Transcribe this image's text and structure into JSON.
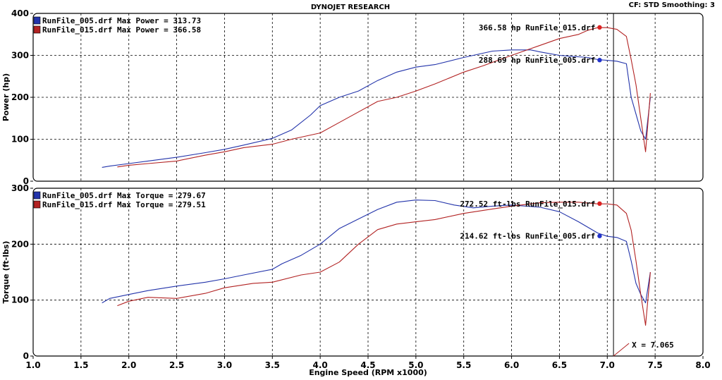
{
  "header": {
    "title": "DYNOJET RESEARCH",
    "settings": "CF: STD  Smoothing: 3"
  },
  "colors": {
    "run_005": "#2233aa",
    "run_015": "#b22222",
    "grid": "#000000",
    "panel_border": "#000000"
  },
  "cursor": {
    "x": 7.065,
    "label": "X = 7.065"
  },
  "chart_data": [
    {
      "type": "line",
      "ylabel": "Power (hp)",
      "xlabel": "",
      "xlim": [
        1.0,
        8.0
      ],
      "ylim": [
        0,
        400
      ],
      "yticks": [
        0,
        100,
        200,
        300,
        400
      ],
      "grid": true,
      "legend": [
        {
          "label": "RunFile_005.drf Max Power = 313.73",
          "color": "#2233aa"
        },
        {
          "label": "RunFile_015.drf Max Power = 366.58",
          "color": "#b22222"
        }
      ],
      "annotations": [
        {
          "text": "366.58 hp RunFile_015.drf",
          "x": 6.92,
          "y": 366.58,
          "color": "#dd2222"
        },
        {
          "text": "288.69 hp RunFile_005.drf",
          "x": 6.92,
          "y": 288.69,
          "color": "#2233cc"
        }
      ],
      "series": [
        {
          "name": "RunFile_005.drf",
          "color": "#2233aa",
          "x": [
            1.72,
            1.8,
            2.0,
            2.2,
            2.5,
            2.8,
            3.0,
            3.2,
            3.5,
            3.7,
            3.9,
            4.0,
            4.2,
            4.4,
            4.6,
            4.8,
            5.0,
            5.2,
            5.5,
            5.8,
            6.0,
            6.2,
            6.3,
            6.5,
            6.6,
            6.8,
            6.9,
            7.0,
            7.1,
            7.2,
            7.25,
            7.3,
            7.35,
            7.4,
            7.45
          ],
          "y": [
            33,
            36,
            42,
            48,
            57,
            68,
            76,
            86,
            102,
            122,
            158,
            180,
            200,
            215,
            240,
            260,
            272,
            278,
            295,
            310,
            313,
            313,
            308,
            300,
            298,
            295,
            290,
            288,
            286,
            280,
            200,
            160,
            120,
            100,
            200
          ]
        },
        {
          "name": "RunFile_015.drf",
          "color": "#b22222",
          "x": [
            1.88,
            2.0,
            2.2,
            2.5,
            2.8,
            3.0,
            3.2,
            3.5,
            3.7,
            4.0,
            4.2,
            4.4,
            4.6,
            4.8,
            5.0,
            5.2,
            5.5,
            5.7,
            6.0,
            6.2,
            6.5,
            6.7,
            6.8,
            6.9,
            7.0,
            7.1,
            7.2,
            7.25,
            7.3,
            7.35,
            7.4,
            7.45
          ],
          "y": [
            34,
            38,
            42,
            48,
            62,
            70,
            80,
            88,
            100,
            115,
            140,
            165,
            190,
            200,
            215,
            232,
            260,
            275,
            300,
            316,
            340,
            350,
            360,
            366,
            366,
            362,
            345,
            290,
            230,
            150,
            70,
            210
          ]
        }
      ]
    },
    {
      "type": "line",
      "ylabel": "Torque (ft-lbs)",
      "xlabel": "Engine Speed (RPM x1000)",
      "xlim": [
        1.0,
        8.0
      ],
      "ylim": [
        0,
        300
      ],
      "yticks": [
        0,
        100,
        200,
        300
      ],
      "xticks": [
        1.0,
        1.5,
        2.0,
        2.5,
        3.0,
        3.5,
        4.0,
        4.5,
        5.0,
        5.5,
        6.0,
        6.5,
        7.0,
        7.5,
        8.0
      ],
      "grid": true,
      "legend": [
        {
          "label": "RunFile_005.drf Max Torque = 279.67",
          "color": "#2233aa"
        },
        {
          "label": "RunFile_015.drf Max Torque = 279.51",
          "color": "#b22222"
        }
      ],
      "annotations": [
        {
          "text": "272.52 ft-lbs RunFile_015.drf",
          "x": 6.92,
          "y": 272.52,
          "color": "#dd2222"
        },
        {
          "text": "214.62 ft-lbs RunFile_005.drf",
          "x": 6.92,
          "y": 214.62,
          "color": "#2233cc"
        }
      ],
      "series": [
        {
          "name": "RunFile_005.drf",
          "color": "#2233aa",
          "x": [
            1.72,
            1.8,
            2.0,
            2.2,
            2.5,
            2.8,
            3.0,
            3.2,
            3.5,
            3.6,
            3.8,
            4.0,
            4.2,
            4.4,
            4.6,
            4.8,
            5.0,
            5.2,
            5.4,
            5.6,
            5.8,
            6.0,
            6.3,
            6.5,
            6.7,
            6.9,
            7.0,
            7.1,
            7.2,
            7.25,
            7.3,
            7.35,
            7.4,
            7.45
          ],
          "y": [
            95,
            103,
            110,
            117,
            125,
            132,
            138,
            145,
            155,
            165,
            180,
            200,
            228,
            245,
            262,
            275,
            279,
            278,
            270,
            265,
            268,
            270,
            266,
            258,
            240,
            220,
            214,
            212,
            205,
            170,
            130,
            110,
            95,
            150
          ]
        },
        {
          "name": "RunFile_015.drf",
          "color": "#b22222",
          "x": [
            1.88,
            2.0,
            2.2,
            2.5,
            2.8,
            3.0,
            3.3,
            3.5,
            3.8,
            4.0,
            4.2,
            4.4,
            4.6,
            4.8,
            5.0,
            5.2,
            5.5,
            5.8,
            6.0,
            6.3,
            6.5,
            6.7,
            6.9,
            7.0,
            7.1,
            7.2,
            7.25,
            7.3,
            7.35,
            7.4,
            7.45
          ],
          "y": [
            90,
            98,
            105,
            103,
            112,
            122,
            130,
            132,
            145,
            150,
            168,
            200,
            226,
            236,
            240,
            244,
            255,
            263,
            268,
            274,
            275,
            275,
            272,
            272,
            270,
            255,
            225,
            170,
            110,
            55,
            150
          ]
        }
      ]
    }
  ]
}
